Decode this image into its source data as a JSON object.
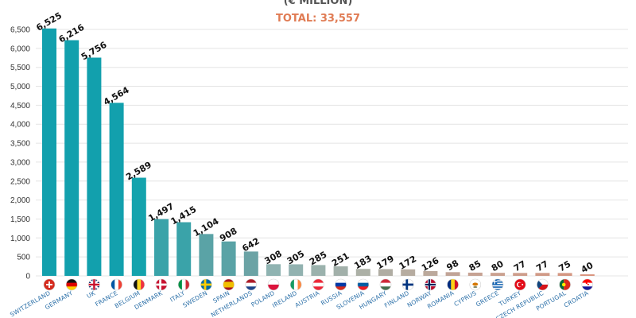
{
  "chart_data": {
    "type": "bar",
    "subtitle": "(€ MILLION)",
    "total_label": "TOTAL: 33,557",
    "ylim": [
      0,
      6500
    ],
    "yticks": [
      0,
      500,
      1000,
      1500,
      2000,
      2500,
      3000,
      3500,
      4000,
      4500,
      5000,
      5500,
      6000,
      6500
    ],
    "ytick_labels": [
      "0",
      "500",
      "1,000",
      "1,500",
      "2,000",
      "2,500",
      "3,000",
      "3,500",
      "4,000",
      "4,500",
      "5,000",
      "5,500",
      "6,000",
      "6,500"
    ],
    "grid": true,
    "categories": [
      "SWITZERLAND",
      "GERMANY",
      "UK",
      "FRANCE",
      "BELGIUM",
      "DENMARK",
      "ITALY",
      "SWEDEN",
      "SPAIN",
      "NETHERLANDS",
      "POLAND",
      "IRELAND",
      "AUSTRIA",
      "RUSSIA",
      "SLOVENIA",
      "HUNGARY",
      "FINLAND",
      "NORWAY",
      "ROMANIA",
      "CYPRUS",
      "GREECE",
      "TURKEY",
      "CZECH REPUBLIC",
      "PORTUGAL",
      "CROATIA"
    ],
    "values": [
      6525,
      6216,
      5756,
      4564,
      2589,
      1497,
      1415,
      1104,
      908,
      642,
      308,
      305,
      285,
      251,
      183,
      179,
      172,
      126,
      98,
      85,
      80,
      77,
      77,
      75,
      40
    ],
    "value_labels": [
      "6,525",
      "6,216",
      "5,756",
      "4,564",
      "2,589",
      "1,497",
      "1,415",
      "1,104",
      "908",
      "642",
      "308",
      "305",
      "285",
      "251",
      "183",
      "179",
      "172",
      "126",
      "98",
      "85",
      "80",
      "77",
      "77",
      "75",
      "40"
    ],
    "bar_colors": [
      "#12a0ad",
      "#12a0ad",
      "#12a0ad",
      "#12a0ad",
      "#14a3ad",
      "#3aa3a9",
      "#3aa3a9",
      "#5aa3a6",
      "#5aa3a6",
      "#6ba3a5",
      "#8fb3b1",
      "#92b2b0",
      "#9bb2ad",
      "#a2b0aa",
      "#acb0a6",
      "#b0ada3",
      "#b6aca0",
      "#bba99c",
      "#c1a497",
      "#c6a293",
      "#caa08f",
      "#cd9d8b",
      "#d09a87",
      "#d49782",
      "#d8937d"
    ],
    "flags": [
      "flag-switzerland-icon",
      "flag-germany-icon",
      "flag-uk-icon",
      "flag-france-icon",
      "flag-belgium-icon",
      "flag-denmark-icon",
      "flag-italy-icon",
      "flag-sweden-icon",
      "flag-spain-icon",
      "flag-netherlands-icon",
      "flag-poland-icon",
      "flag-ireland-icon",
      "flag-austria-icon",
      "flag-russia-icon",
      "flag-slovenia-icon",
      "flag-hungary-icon",
      "flag-finland-icon",
      "flag-norway-icon",
      "flag-romania-icon",
      "flag-cyprus-icon",
      "flag-greece-icon",
      "flag-turkey-icon",
      "flag-czech-republic-icon",
      "flag-portugal-icon",
      "flag-croatia-icon"
    ]
  },
  "colors": {
    "total": "#e07b53",
    "axis_text": "#333333",
    "category_text": "#2a6fa8",
    "grid": "#e4e4e4"
  }
}
